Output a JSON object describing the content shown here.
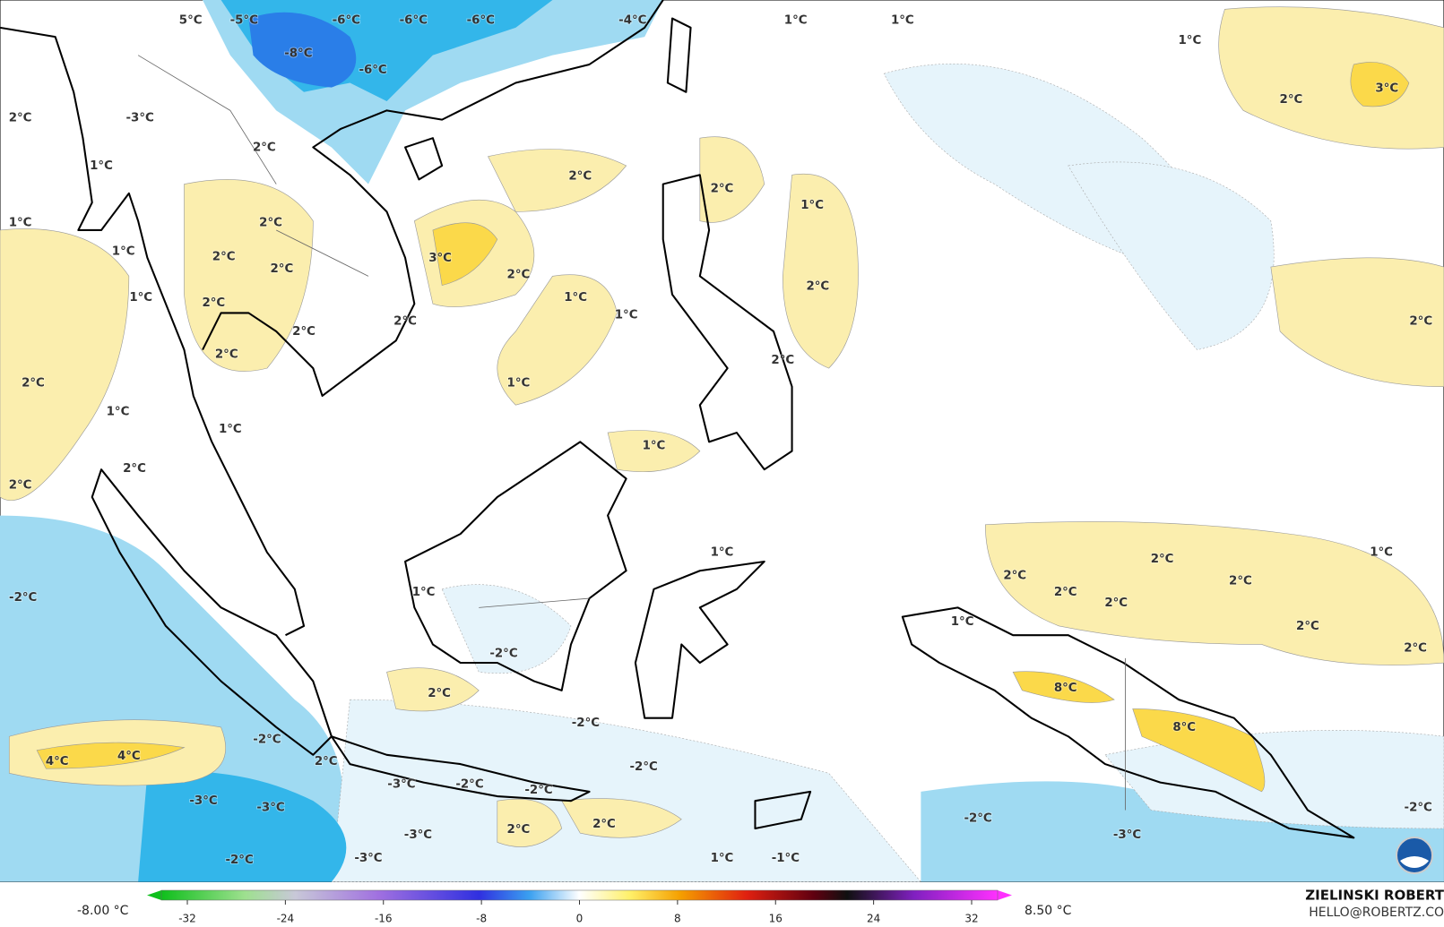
{
  "map": {
    "labels": [
      "5°C",
      "-5°C",
      "-6°C",
      "-6°C",
      "-6°C",
      "-4°C",
      "1°C",
      "1°C",
      "-8°C",
      "-6°C",
      "1°C",
      "2°C",
      "3°C",
      "2°C",
      "-3°C",
      "2°C",
      "1°C",
      "2°C",
      "2°C",
      "1°C",
      "1°C",
      "2°C",
      "1°C",
      "2°C",
      "3°C",
      "2°C",
      "2°C",
      "2°C",
      "1°C",
      "1°C",
      "2°C",
      "1°C",
      "2°C",
      "2°C",
      "2°C",
      "2°C",
      "2°C",
      "2°C",
      "1°C",
      "1°C",
      "1°C",
      "1°C",
      "2°C",
      "2°C",
      "1°C",
      "1°C",
      "2°C",
      "2°C",
      "2°C",
      "1°C",
      "2°C",
      "-2°C",
      "2°C",
      "1°C",
      "2°C",
      "-2°C",
      "2°C",
      "8°C",
      "2°C",
      "8°C",
      "-2°C",
      "-2°C",
      "4°C",
      "4°C",
      "2°C",
      "-2°C",
      "-3°C",
      "-2°C",
      "-2°C",
      "-3°C",
      "-3°C",
      "-2°C",
      "-2°C",
      "2°C",
      "2°C",
      "-3°C",
      "-3°C",
      "-3°C",
      "-2°C",
      "1°C",
      "-1°C"
    ],
    "colorbar": {
      "min_label": "-8.00 °C",
      "max_label": "8.50 °C",
      "ticks": [
        -32,
        -24,
        -16,
        -8,
        0,
        8,
        16,
        24,
        32
      ]
    },
    "credit": {
      "name": "ZIELINSKI ROBERT",
      "email": "HELLO@ROBERTZ.CO"
    }
  }
}
